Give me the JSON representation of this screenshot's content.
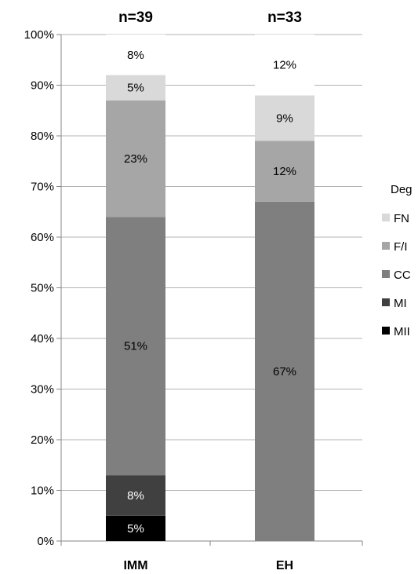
{
  "chart_data": {
    "type": "bar",
    "stacked": true,
    "categories": [
      "IMM",
      "EH"
    ],
    "category_annotations": [
      "n=39",
      "n=33"
    ],
    "series": [
      {
        "name": "MII",
        "color": "#000000",
        "label_color": "#ffffff",
        "values": [
          5,
          0
        ],
        "labels": [
          "5%",
          ""
        ]
      },
      {
        "name": "MI",
        "color": "#404040",
        "label_color": "#ffffff",
        "values": [
          8,
          0
        ],
        "labels": [
          "8%",
          ""
        ]
      },
      {
        "name": "CC",
        "color": "#7f7f7f",
        "label_color": "#000000",
        "values": [
          51,
          67
        ],
        "labels": [
          "51%",
          "67%"
        ]
      },
      {
        "name": "F/I",
        "color": "#a6a6a6",
        "label_color": "#000000",
        "values": [
          23,
          12
        ],
        "labels": [
          "23%",
          "12%"
        ]
      },
      {
        "name": "FN",
        "color": "#d9d9d9",
        "label_color": "#000000",
        "values": [
          5,
          9
        ],
        "labels": [
          "5%",
          "9%"
        ]
      },
      {
        "name": "",
        "color": "#ffffff",
        "label_color": "#000000",
        "values": [
          8,
          12
        ],
        "labels": [
          "8%",
          "12%"
        ]
      }
    ],
    "ylim": [
      0,
      100
    ],
    "yticks": [
      "0%",
      "10%",
      "20%",
      "30%",
      "40%",
      "50%",
      "60%",
      "70%",
      "80%",
      "90%",
      "100%"
    ],
    "grid": true,
    "legend": {
      "title": "Deg",
      "placement": "right",
      "entries": [
        {
          "name": "FN",
          "color": "#d9d9d9"
        },
        {
          "name": "F/I",
          "color": "#a6a6a6"
        },
        {
          "name": "CC",
          "color": "#7f7f7f"
        },
        {
          "name": "MI",
          "color": "#404040"
        },
        {
          "name": "MII",
          "color": "#000000"
        }
      ]
    }
  }
}
